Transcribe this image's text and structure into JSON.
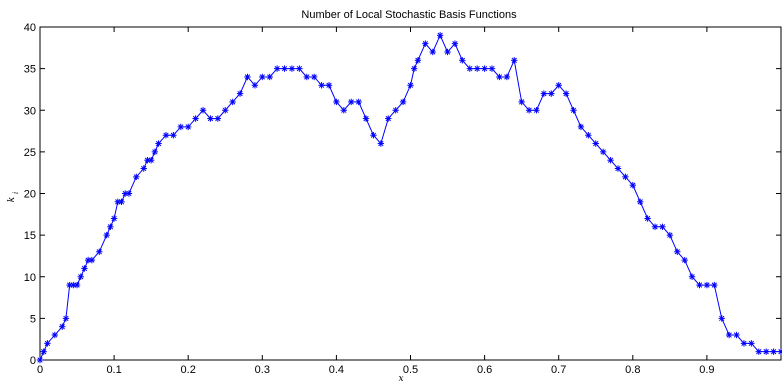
{
  "chart_data": {
    "type": "line",
    "title": "Number of Local Stochastic Basis Functions",
    "xlabel": "x",
    "ylabel": "k_i",
    "xlim": [
      0,
      1
    ],
    "ylim": [
      0,
      40
    ],
    "x_ticks": [
      "0",
      "0.1",
      "0.2",
      "0.3",
      "0.4",
      "0.5",
      "0.6",
      "0.7",
      "0.8",
      "0.9"
    ],
    "y_ticks": [
      "0",
      "5",
      "10",
      "15",
      "20",
      "25",
      "30",
      "35",
      "40"
    ],
    "grid": false,
    "marker": "asterisk",
    "line_color": "#0000ff",
    "series": [
      {
        "x": [
          0.0,
          0.005,
          0.01,
          0.02,
          0.03,
          0.035,
          0.04,
          0.045,
          0.05,
          0.055,
          0.06,
          0.065,
          0.07,
          0.08,
          0.09,
          0.095,
          0.1,
          0.105,
          0.11,
          0.115,
          0.12,
          0.13,
          0.14,
          0.145,
          0.15,
          0.155,
          0.16,
          0.17,
          0.18,
          0.19,
          0.2,
          0.21,
          0.22,
          0.23,
          0.24,
          0.25,
          0.26,
          0.27,
          0.28,
          0.29,
          0.3,
          0.31,
          0.32,
          0.33,
          0.34,
          0.35,
          0.36,
          0.37,
          0.38,
          0.39,
          0.4,
          0.41,
          0.42,
          0.43,
          0.44,
          0.45,
          0.46,
          0.47,
          0.48,
          0.49,
          0.5,
          0.505,
          0.51,
          0.52,
          0.53,
          0.54,
          0.55,
          0.56,
          0.57,
          0.58,
          0.59,
          0.6,
          0.61,
          0.62,
          0.63,
          0.64,
          0.65,
          0.66,
          0.67,
          0.68,
          0.69,
          0.7,
          0.71,
          0.72,
          0.73,
          0.74,
          0.75,
          0.76,
          0.77,
          0.78,
          0.79,
          0.8,
          0.81,
          0.82,
          0.83,
          0.84,
          0.85,
          0.86,
          0.87,
          0.88,
          0.89,
          0.9,
          0.91,
          0.92,
          0.93,
          0.94,
          0.95,
          0.96,
          0.97,
          0.98,
          0.99,
          1.0
        ],
        "y": [
          0,
          1,
          2,
          3,
          4,
          5,
          9,
          9,
          9,
          10,
          11,
          12,
          12,
          13,
          15,
          16,
          17,
          19,
          19,
          20,
          20,
          22,
          23,
          24,
          24,
          25,
          26,
          27,
          27,
          28,
          28,
          29,
          30,
          29,
          29,
          30,
          31,
          32,
          34,
          33,
          34,
          34,
          35,
          35,
          35,
          35,
          34,
          34,
          33,
          33,
          31,
          30,
          31,
          31,
          29,
          27,
          26,
          29,
          30,
          31,
          33,
          35,
          36,
          38,
          37,
          39,
          37,
          38,
          36,
          35,
          35,
          35,
          35,
          34,
          34,
          36,
          31,
          30,
          30,
          32,
          32,
          33,
          32,
          30,
          28,
          27,
          26,
          25,
          24,
          23,
          22,
          21,
          19,
          17,
          16,
          16,
          15,
          13,
          12,
          10,
          9,
          9,
          9,
          5,
          3,
          3,
          2,
          2,
          1,
          1,
          1,
          1
        ]
      }
    ]
  }
}
